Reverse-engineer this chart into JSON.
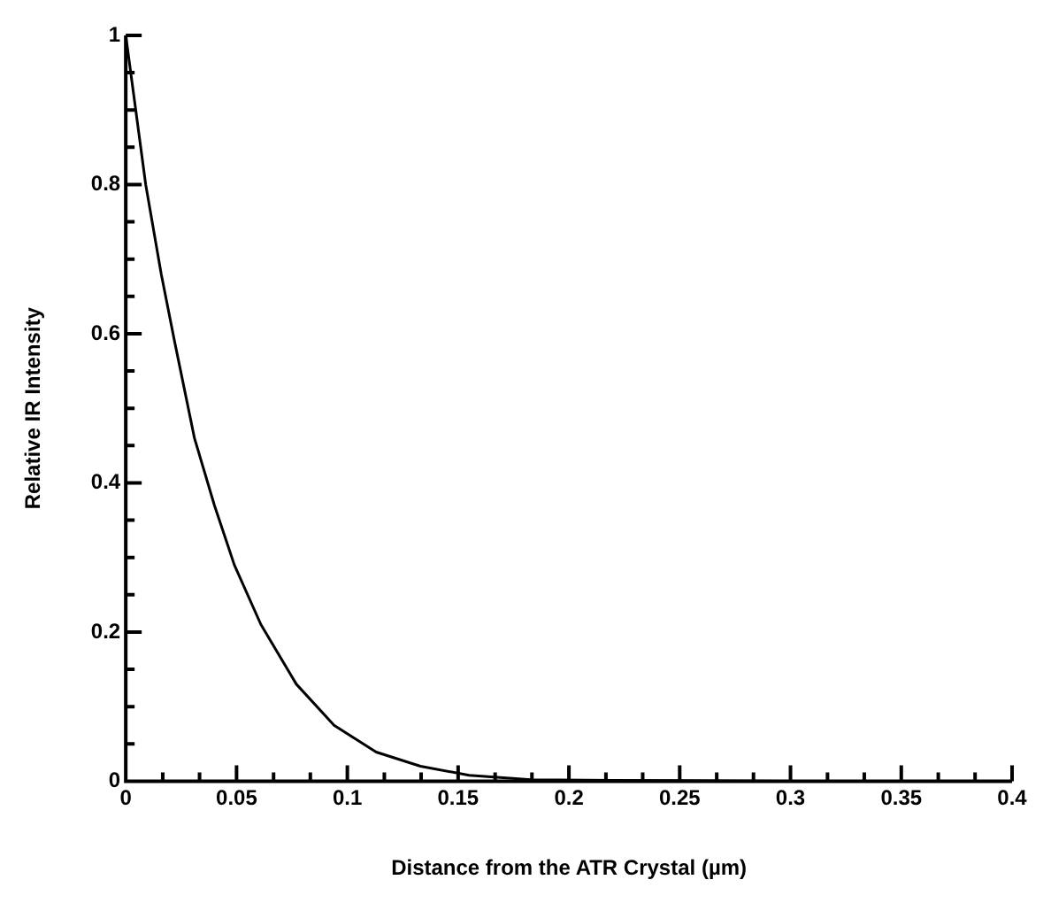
{
  "chart_data": {
    "type": "line",
    "xlabel": "Distance from the ATR Crystal (µm)",
    "ylabel": "Relative IR Intensity",
    "series": [
      {
        "color": "#000000",
        "x": [
          0,
          0.009,
          0.016,
          0.022,
          0.031,
          0.04,
          0.049,
          0.061,
          0.077,
          0.094,
          0.113,
          0.133,
          0.155,
          0.183,
          0.22,
          0.3,
          0.4
        ],
        "values": [
          1,
          0.8,
          0.68,
          0.59,
          0.46,
          0.37,
          0.29,
          0.21,
          0.13,
          0.075,
          0.039,
          0.02,
          0.008,
          0.002,
          0.001,
          0,
          0
        ]
      }
    ],
    "xlim": [
      0,
      0.4
    ],
    "xticks": [
      0,
      {
        "value": 0.0167,
        "label": null
      },
      {
        "value": 0.0333,
        "label": null
      },
      0.05,
      {
        "value": 0.0667,
        "label": null
      },
      {
        "value": 0.0833,
        "label": null
      },
      0.1,
      {
        "value": 0.1167,
        "label": null
      },
      {
        "value": 0.1333,
        "label": null
      },
      0.15,
      {
        "value": 0.1667,
        "label": null
      },
      {
        "value": 0.1833,
        "label": null
      },
      0.2,
      {
        "value": 0.2167,
        "label": null
      },
      {
        "value": 0.2333,
        "label": null
      },
      0.25,
      {
        "value": 0.2667,
        "label": null
      },
      {
        "value": 0.2833,
        "label": null
      },
      0.3,
      {
        "value": 0.3167,
        "label": null
      },
      {
        "value": 0.3333,
        "label": null
      },
      0.35,
      {
        "value": 0.3667,
        "label": null
      },
      {
        "value": 0.3833,
        "label": null
      },
      0.4
    ],
    "ylim": [
      0,
      1
    ],
    "yticks": [
      0,
      {
        "value": 0.05,
        "label": null
      },
      {
        "value": 0.1,
        "label": null
      },
      {
        "value": 0.15,
        "label": null
      },
      0.2,
      {
        "value": 0.25,
        "label": null
      },
      {
        "value": 0.3,
        "label": null
      },
      {
        "value": 0.35,
        "label": null
      },
      0.4,
      {
        "value": 0.45,
        "label": null
      },
      {
        "value": 0.5,
        "label": null
      },
      {
        "value": 0.55,
        "label": null
      },
      0.6,
      {
        "value": 0.65,
        "label": null
      },
      {
        "value": 0.7,
        "label": null
      },
      {
        "value": 0.75,
        "label": null
      },
      0.8,
      {
        "value": 0.85,
        "label": null
      },
      {
        "value": 0.9,
        "label": null
      },
      {
        "value": 0.95,
        "label": null
      },
      1
    ],
    "grid": false,
    "legend": false,
    "marker": "none",
    "line_style": "solid"
  }
}
